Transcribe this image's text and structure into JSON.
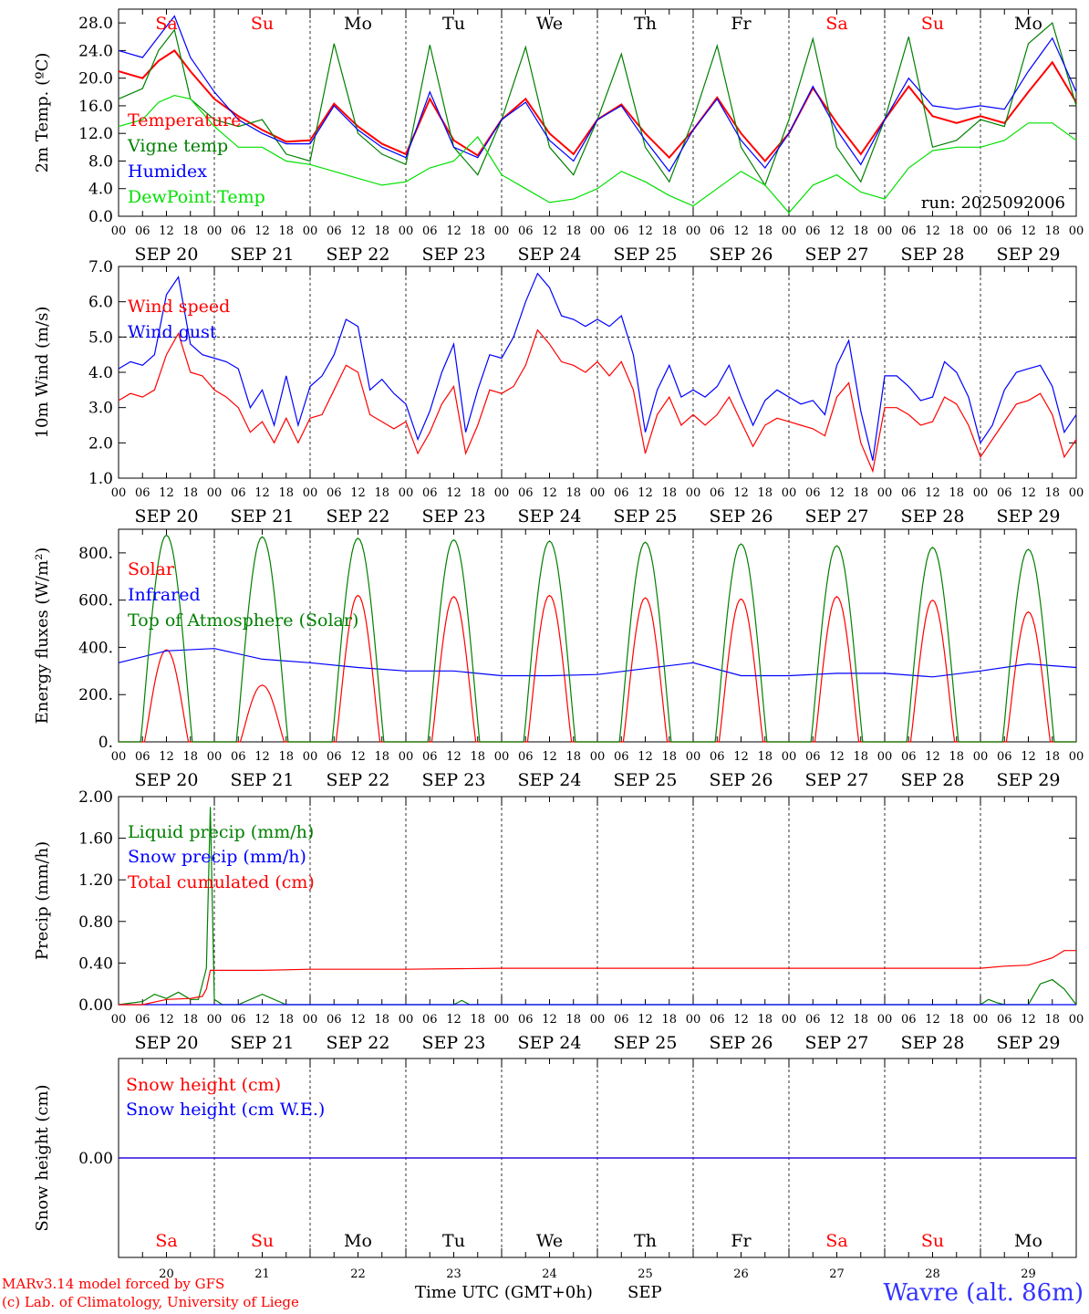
{
  "colors": {
    "temperature": "#ff0000",
    "vigne": "#008000",
    "humidex": "#0000ff",
    "dewpoint": "#00e000",
    "weekend": "#ff0000",
    "weekday": "#000000",
    "station": "#3333ff"
  },
  "days": {
    "dates": [
      "SEP 20",
      "SEP 21",
      "SEP 22",
      "SEP 23",
      "SEP 24",
      "SEP 25",
      "SEP 26",
      "SEP 27",
      "SEP 28",
      "SEP 29"
    ],
    "day_numbers": [
      "20",
      "21",
      "22",
      "23",
      "24",
      "25",
      "26",
      "27",
      "28",
      "29"
    ],
    "weekdays": [
      "Sa",
      "Su",
      "Mo",
      "Tu",
      "We",
      "Th",
      "Fr",
      "Sa",
      "Su",
      "Mo"
    ],
    "weekend": [
      true,
      true,
      false,
      false,
      false,
      false,
      false,
      true,
      true,
      false
    ],
    "hour_ticks": [
      "00",
      "06",
      "12",
      "18"
    ],
    "final_hour": "00"
  },
  "run_label": "run: 2025092006",
  "footer": {
    "model": "MARv3.14 model forced by GFS",
    "credit": "(c) Lab. of Climatology, University of Liege",
    "axis_title": "Time UTC (GMT+0h)",
    "month": "SEP",
    "station": "Wavre (alt. 86m)"
  },
  "chart_data": [
    {
      "type": "line",
      "ylabel": "2m Temp. (ºC)",
      "ylim": [
        0,
        30
      ],
      "yticks": [
        "0.0",
        "4.0",
        "8.0",
        "12.0",
        "16.0",
        "20.0",
        "24.0",
        "28.0"
      ],
      "x_unit": "hours since SEP 20 00 UTC",
      "x": [
        0,
        6,
        10,
        14,
        18,
        24,
        30,
        36,
        42,
        48,
        54,
        60,
        66,
        72,
        78,
        84,
        90,
        96,
        102,
        108,
        114,
        120,
        126,
        132,
        138,
        144,
        150,
        156,
        162,
        168,
        174,
        180,
        186,
        192,
        198,
        204,
        210,
        216,
        222,
        228,
        234,
        240
      ],
      "series": [
        {
          "name": "Temperature",
          "color": "#ff0000",
          "values": [
            21.0,
            20.0,
            22.5,
            24.0,
            21.0,
            17.0,
            14.5,
            12.5,
            10.8,
            11.0,
            16.3,
            13.0,
            10.5,
            9.0,
            17.0,
            11.0,
            8.8,
            14.0,
            17.0,
            12.0,
            9.0,
            14.0,
            16.2,
            12.0,
            8.5,
            12.5,
            17.2,
            12.0,
            8.0,
            12.0,
            18.6,
            13.5,
            9.0,
            14.0,
            18.8,
            14.5,
            13.5,
            14.5,
            13.5,
            18.0,
            22.3,
            16.5
          ]
        },
        {
          "name": "Vigne temp",
          "color": "#008000",
          "values": [
            17.0,
            18.5,
            24.0,
            27.0,
            17.0,
            14.0,
            13.0,
            14.0,
            9.0,
            8.0,
            25.0,
            12.0,
            9.0,
            7.5,
            24.8,
            10.0,
            6.0,
            14.0,
            24.5,
            10.0,
            6.0,
            14.0,
            23.5,
            10.0,
            5.0,
            14.0,
            24.7,
            10.0,
            4.5,
            14.0,
            25.7,
            10.0,
            5.0,
            14.0,
            26.0,
            10.0,
            11.0,
            14.0,
            13.0,
            25.0,
            28.0,
            16.0
          ]
        },
        {
          "name": "Humidex",
          "color": "#0000ff",
          "values": [
            24.0,
            23.0,
            26.0,
            29.0,
            23.0,
            18.0,
            14.0,
            12.0,
            10.5,
            10.5,
            16.0,
            12.5,
            10.0,
            8.5,
            18.0,
            10.0,
            8.5,
            14.0,
            16.5,
            11.0,
            8.0,
            14.0,
            16.0,
            11.0,
            6.5,
            12.5,
            17.0,
            11.0,
            7.0,
            12.0,
            18.8,
            12.5,
            7.5,
            14.0,
            20.0,
            16.0,
            15.5,
            16.0,
            15.5,
            21.0,
            25.8,
            18.0
          ]
        },
        {
          "name": "DewPoint Temp",
          "color": "#00e000",
          "values": [
            13.0,
            14.0,
            16.5,
            17.5,
            17.0,
            13.0,
            10.0,
            10.0,
            8.0,
            7.5,
            6.5,
            5.5,
            4.5,
            5.0,
            7.0,
            8.0,
            11.5,
            6.0,
            4.0,
            2.0,
            2.5,
            4.0,
            6.5,
            5.0,
            3.0,
            1.5,
            4.0,
            6.5,
            4.5,
            0.5,
            4.5,
            6.0,
            3.5,
            2.5,
            7.0,
            9.5,
            10.0,
            10.0,
            11.0,
            13.5,
            13.5,
            11.0
          ]
        }
      ],
      "legend": "top-left",
      "grid": false
    },
    {
      "type": "line",
      "ylabel": "10m Wind (m/s)",
      "ylim": [
        1,
        7
      ],
      "yticks": [
        "1.0",
        "2.0",
        "3.0",
        "4.0",
        "5.0",
        "6.0",
        "7.0"
      ],
      "reference_line": 5.0,
      "x_unit": "hours since SEP 20 00 UTC",
      "x": [
        0,
        3,
        6,
        9,
        12,
        15,
        18,
        21,
        24,
        27,
        30,
        33,
        36,
        39,
        42,
        45,
        48,
        51,
        54,
        57,
        60,
        63,
        66,
        69,
        72,
        75,
        78,
        81,
        84,
        87,
        90,
        93,
        96,
        99,
        102,
        105,
        108,
        111,
        114,
        117,
        120,
        123,
        126,
        129,
        132,
        135,
        138,
        141,
        144,
        147,
        150,
        153,
        156,
        159,
        162,
        165,
        168,
        171,
        174,
        177,
        180,
        183,
        186,
        189,
        192,
        195,
        198,
        201,
        204,
        207,
        210,
        213,
        216,
        219,
        222,
        225,
        228,
        231,
        234,
        237,
        240
      ],
      "series": [
        {
          "name": "Wind speed",
          "color": "#ff0000",
          "values": [
            3.2,
            3.4,
            3.3,
            3.5,
            4.5,
            5.1,
            4.0,
            3.9,
            3.5,
            3.3,
            3.0,
            2.3,
            2.6,
            2.0,
            2.7,
            2.0,
            2.7,
            2.8,
            3.5,
            4.2,
            4.0,
            2.8,
            2.6,
            2.4,
            2.6,
            1.7,
            2.3,
            3.1,
            3.6,
            1.7,
            2.5,
            3.5,
            3.4,
            3.6,
            4.2,
            5.2,
            4.8,
            4.3,
            4.2,
            4.0,
            4.3,
            3.9,
            4.3,
            3.5,
            1.7,
            2.8,
            3.3,
            2.5,
            2.8,
            2.5,
            2.8,
            3.3,
            2.6,
            1.9,
            2.5,
            2.7,
            2.6,
            2.5,
            2.4,
            2.2,
            3.3,
            3.7,
            2.0,
            1.2,
            3.0,
            3.0,
            2.8,
            2.5,
            2.6,
            3.3,
            3.1,
            2.5,
            1.6,
            2.1,
            2.6,
            3.1,
            3.2,
            3.4,
            2.8,
            1.6,
            2.1
          ]
        },
        {
          "name": "Wind gust",
          "color": "#0000ff",
          "values": [
            4.1,
            4.3,
            4.2,
            4.5,
            6.2,
            6.7,
            4.8,
            4.5,
            4.4,
            4.3,
            4.1,
            3.0,
            3.5,
            2.5,
            3.9,
            2.5,
            3.6,
            3.9,
            4.5,
            5.5,
            5.3,
            3.5,
            3.8,
            3.4,
            3.1,
            2.1,
            2.9,
            4.0,
            4.8,
            2.3,
            3.5,
            4.5,
            4.4,
            5.0,
            6.0,
            6.8,
            6.4,
            5.6,
            5.5,
            5.3,
            5.5,
            5.3,
            5.6,
            4.5,
            2.3,
            3.5,
            4.2,
            3.3,
            3.5,
            3.3,
            3.6,
            4.2,
            3.3,
            2.5,
            3.2,
            3.5,
            3.3,
            3.1,
            3.2,
            2.8,
            4.2,
            4.9,
            2.9,
            1.5,
            3.9,
            3.9,
            3.6,
            3.2,
            3.3,
            4.3,
            4.0,
            3.3,
            2.0,
            2.5,
            3.5,
            4.0,
            4.1,
            4.2,
            3.6,
            2.3,
            2.8
          ]
        }
      ],
      "legend": "top-left",
      "grid": false
    },
    {
      "type": "line",
      "ylabel": "Energy fluxes (W/m²)",
      "ylim": [
        0,
        900
      ],
      "yticks": [
        "0.",
        "200.",
        "400.",
        "600.",
        "800."
      ],
      "x_unit": "hours since SEP 20 00 UTC",
      "series": [
        {
          "name": "Solar",
          "color": "#ff0000",
          "note": "daily peaks (W/m²) at ~13 UTC",
          "values": [
            390,
            240,
            620,
            615,
            620,
            610,
            605,
            615,
            600,
            550
          ]
        },
        {
          "name": "Infrared",
          "color": "#0000ff",
          "x": [
            0,
            12,
            24,
            36,
            48,
            60,
            72,
            84,
            96,
            108,
            120,
            132,
            144,
            156,
            168,
            180,
            192,
            204,
            216,
            228,
            240
          ],
          "values": [
            335,
            385,
            395,
            350,
            335,
            315,
            300,
            300,
            280,
            280,
            285,
            310,
            335,
            280,
            280,
            290,
            290,
            275,
            300,
            330,
            315
          ]
        },
        {
          "name": "Top of Atmosphere (Solar)",
          "color": "#008000",
          "note": "daily peaks (W/m²) at ~12 UTC",
          "values": [
            875,
            868,
            862,
            855,
            850,
            845,
            838,
            830,
            823,
            815
          ]
        }
      ],
      "legend": "top-left",
      "grid": false
    },
    {
      "type": "line",
      "ylabel": "Precip (mm/h)",
      "ylim": [
        0,
        2
      ],
      "yticks": [
        "0.00",
        "0.40",
        "0.80",
        "1.20",
        "1.60",
        "2.00"
      ],
      "x_unit": "hours since SEP 20 00 UTC",
      "series": [
        {
          "name": "Liquid precip (mm/h)",
          "color": "#008000",
          "x": [
            0,
            6,
            9,
            12,
            15,
            18,
            20,
            22,
            23,
            24,
            26,
            30,
            36,
            42,
            48,
            84,
            86,
            88,
            216,
            218,
            220,
            222,
            228,
            231,
            234,
            237,
            240
          ],
          "values": [
            0,
            0.03,
            0.1,
            0.06,
            0.12,
            0.05,
            0.05,
            0.35,
            1.9,
            0.05,
            0,
            0,
            0.1,
            0,
            0,
            0,
            0.04,
            0,
            0,
            0.05,
            0.02,
            0,
            0,
            0.2,
            0.24,
            0.15,
            0
          ]
        },
        {
          "name": "Snow precip (mm/h)",
          "color": "#0000ff",
          "x": [
            0,
            240
          ],
          "values": [
            0,
            0
          ]
        },
        {
          "name": "Total cumulated (cm)",
          "color": "#ff0000",
          "x": [
            0,
            6,
            12,
            18,
            21,
            22,
            23,
            24,
            36,
            48,
            72,
            96,
            120,
            144,
            168,
            192,
            216,
            222,
            228,
            234,
            237,
            240
          ],
          "values": [
            0,
            0,
            0.05,
            0.06,
            0.08,
            0.15,
            0.33,
            0.33,
            0.33,
            0.34,
            0.34,
            0.35,
            0.35,
            0.35,
            0.35,
            0.35,
            0.35,
            0.37,
            0.38,
            0.45,
            0.52,
            0.52
          ]
        }
      ],
      "legend": "top-left",
      "grid": false
    },
    {
      "type": "line",
      "ylabel": "Snow height (cm)",
      "yticks": [
        "0.00"
      ],
      "x_unit": "hours since SEP 20 00 UTC",
      "series": [
        {
          "name": "Snow height (cm)",
          "color": "#ff0000",
          "x": [
            0,
            240
          ],
          "values": [
            0,
            0
          ]
        },
        {
          "name": "Snow height (cm W.E.)",
          "color": "#0000ff",
          "x": [
            0,
            240
          ],
          "values": [
            0,
            0
          ]
        }
      ],
      "legend": "top-left",
      "grid": false
    }
  ]
}
